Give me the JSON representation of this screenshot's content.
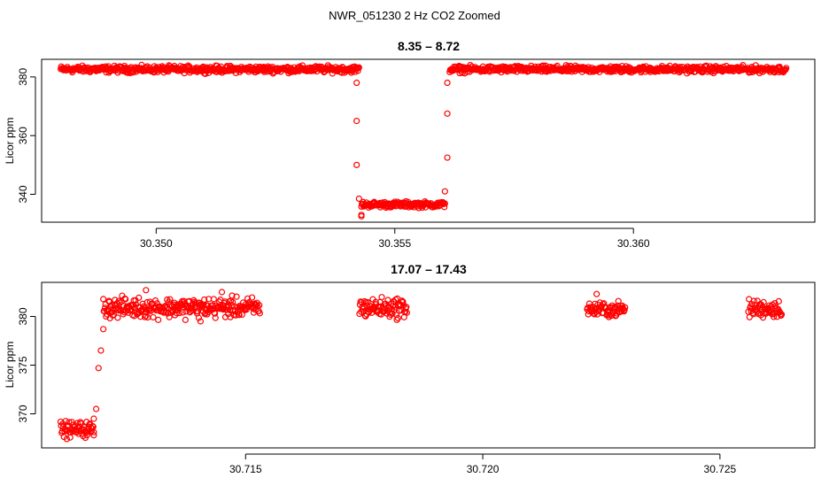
{
  "figure": {
    "suptitle": "NWR_051230  2 Hz CO2 Zoomed"
  },
  "chart_data": [
    {
      "type": "scatter",
      "title": "8.35 – 8.72",
      "xlabel": "",
      "ylabel": "Licor ppm",
      "xlim": [
        30.3476,
        30.3638
      ],
      "ylim": [
        330.5,
        386
      ],
      "x_ticks": [
        30.35,
        30.355,
        30.36
      ],
      "x_tick_labels": [
        "30.350",
        "30.355",
        "30.360"
      ],
      "y_ticks": [
        340,
        360,
        380
      ],
      "y_tick_labels": [
        "340",
        "360",
        "380"
      ],
      "marker_color": "#ff0000",
      "grid": false,
      "segments": [
        {
          "x_start": 30.348,
          "x_end": 30.35425,
          "y_mean": 382.6,
          "y_spread": 1.0
        },
        {
          "x_start": 30.3543,
          "x_end": 30.35605,
          "y_mean": 336.5,
          "y_spread": 0.9
        },
        {
          "x_start": 30.35615,
          "x_end": 30.3632,
          "y_mean": 382.6,
          "y_spread": 1.0
        }
      ],
      "transition_points": [
        {
          "x": 30.3542,
          "y": 378
        },
        {
          "x": 30.3542,
          "y": 365
        },
        {
          "x": 30.3542,
          "y": 350
        },
        {
          "x": 30.35425,
          "y": 338.5
        },
        {
          "x": 30.3543,
          "y": 333
        },
        {
          "x": 30.3543,
          "y": 332.5
        },
        {
          "x": 30.35605,
          "y": 341
        },
        {
          "x": 30.3561,
          "y": 352.5
        },
        {
          "x": 30.3561,
          "y": 367.5
        },
        {
          "x": 30.3561,
          "y": 378
        }
      ]
    },
    {
      "type": "scatter",
      "title": "17.07 – 17.43",
      "xlabel": "",
      "ylabel": "Licor ppm",
      "xlim": [
        30.7107,
        30.727
      ],
      "ylim": [
        366.5,
        383.5
      ],
      "x_ticks": [
        30.715,
        30.72,
        30.725
      ],
      "x_tick_labels": [
        "30.715",
        "30.720",
        "30.725"
      ],
      "y_ticks": [
        370,
        375,
        380
      ],
      "y_tick_labels": [
        "370",
        "375",
        "380"
      ],
      "marker_color": "#ff0000",
      "grid": false,
      "segments": [
        {
          "x_start": 30.7111,
          "x_end": 30.7118,
          "y_mean": 368.4,
          "y_spread": 0.7
        },
        {
          "x_start": 30.712,
          "x_end": 30.7153,
          "y_mean": 380.9,
          "y_spread": 0.9
        },
        {
          "x_start": 30.7174,
          "x_end": 30.7184,
          "y_mean": 380.9,
          "y_spread": 0.9
        },
        {
          "x_start": 30.7222,
          "x_end": 30.723,
          "y_mean": 380.7,
          "y_spread": 0.7
        },
        {
          "x_start": 30.7256,
          "x_end": 30.7263,
          "y_mean": 380.8,
          "y_spread": 0.8
        }
      ],
      "transition_points": [
        {
          "x": 30.7118,
          "y": 369.5
        },
        {
          "x": 30.71185,
          "y": 370.5
        },
        {
          "x": 30.7119,
          "y": 374.7
        },
        {
          "x": 30.71195,
          "y": 376.5
        },
        {
          "x": 30.712,
          "y": 378.7
        },
        {
          "x": 30.7118,
          "y": 367.8
        },
        {
          "x": 30.7129,
          "y": 382.7
        },
        {
          "x": 30.7145,
          "y": 382.5
        },
        {
          "x": 30.71405,
          "y": 379.5
        },
        {
          "x": 30.7224,
          "y": 382.3
        }
      ]
    }
  ]
}
